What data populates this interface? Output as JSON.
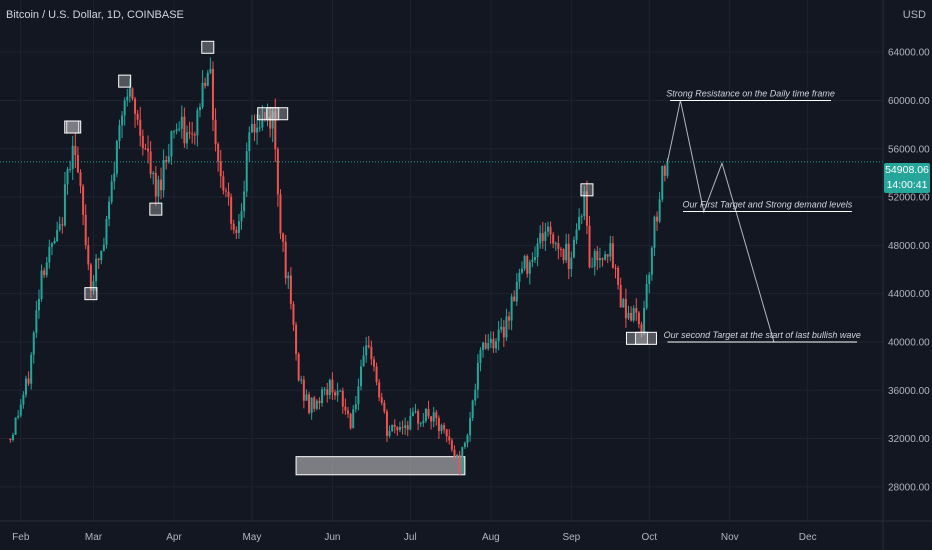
{
  "header": {
    "title": "Bitcoin / U.S. Dollar, 1D, COINBASE",
    "currency": "USD"
  },
  "price_tag": {
    "price": "54908.06",
    "countdown": "14:00:41"
  },
  "colors": {
    "up": "#26a69a",
    "down": "#ef5350",
    "background": "#131722",
    "grid": "#1f2330",
    "annotation": "#d1d4dc"
  },
  "annotations": {
    "resistance": "Strong Resistance on the Daily time frame",
    "first_target": "Our First Target and Strong demand levels",
    "second_target": "Our second Target at the start of last bullish wave"
  },
  "chart_data": {
    "type": "candlestick",
    "title": "Bitcoin / U.S. Dollar, 1D, COINBASE",
    "xlabel": "",
    "ylabel": "",
    "ylim": [
      25000,
      68000
    ],
    "y_ticks": [
      28000,
      32000,
      36000,
      40000,
      44000,
      48000,
      52000,
      56000,
      60000,
      64000
    ],
    "y_tick_labels": [
      "28000.00",
      "32000.00",
      "36000.00",
      "40000.00",
      "44000.00",
      "48000.00",
      "52000.00",
      "56000.00",
      "60000.00",
      "64000.00"
    ],
    "x_ticks": [
      "Feb",
      "Mar",
      "Apr",
      "May",
      "Jun",
      "Jul",
      "Aug",
      "Sep",
      "Oct",
      "Nov",
      "Dec"
    ],
    "grid": true,
    "last_price": 54908.06,
    "close_path": [
      {
        "date": "2021-01-28",
        "close": 32000
      },
      {
        "date": "2021-02-04",
        "close": 37000
      },
      {
        "date": "2021-02-09",
        "close": 46000
      },
      {
        "date": "2021-02-16",
        "close": 49000
      },
      {
        "date": "2021-02-21",
        "close": 57000
      },
      {
        "date": "2021-02-28",
        "close": 45000
      },
      {
        "date": "2021-03-05",
        "close": 48000
      },
      {
        "date": "2021-03-13",
        "close": 61000
      },
      {
        "date": "2021-03-20",
        "close": 57000
      },
      {
        "date": "2021-03-25",
        "close": 52000
      },
      {
        "date": "2021-04-01",
        "close": 58000
      },
      {
        "date": "2021-04-08",
        "close": 56500
      },
      {
        "date": "2021-04-14",
        "close": 63500
      },
      {
        "date": "2021-04-18",
        "close": 55000
      },
      {
        "date": "2021-04-25",
        "close": 49000
      },
      {
        "date": "2021-05-01",
        "close": 57800
      },
      {
        "date": "2021-05-09",
        "close": 58500
      },
      {
        "date": "2021-05-12",
        "close": 50000
      },
      {
        "date": "2021-05-19",
        "close": 37000
      },
      {
        "date": "2021-05-23",
        "close": 34500
      },
      {
        "date": "2021-06-01",
        "close": 36500
      },
      {
        "date": "2021-06-08",
        "close": 33500
      },
      {
        "date": "2021-06-15",
        "close": 40000
      },
      {
        "date": "2021-06-22",
        "close": 32500
      },
      {
        "date": "2021-07-01",
        "close": 33500
      },
      {
        "date": "2021-07-08",
        "close": 34000
      },
      {
        "date": "2021-07-15",
        "close": 32000
      },
      {
        "date": "2021-07-20",
        "close": 29800
      },
      {
        "date": "2021-07-25",
        "close": 35000
      },
      {
        "date": "2021-07-29",
        "close": 40000
      },
      {
        "date": "2021-08-05",
        "close": 40500
      },
      {
        "date": "2021-08-12",
        "close": 45500
      },
      {
        "date": "2021-08-22",
        "close": 49300
      },
      {
        "date": "2021-08-31",
        "close": 47000
      },
      {
        "date": "2021-09-06",
        "close": 52000
      },
      {
        "date": "2021-09-08",
        "close": 46500
      },
      {
        "date": "2021-09-15",
        "close": 48000
      },
      {
        "date": "2021-09-21",
        "close": 43000
      },
      {
        "date": "2021-09-28",
        "close": 41500
      },
      {
        "date": "2021-10-02",
        "close": 48000
      },
      {
        "date": "2021-10-06",
        "close": 54000
      },
      {
        "date": "2021-10-08",
        "close": 54908.06
      }
    ],
    "pivot_markers": [
      {
        "date": "2021-02-21",
        "price": 57800
      },
      {
        "date": "2021-02-28",
        "price": 44000
      },
      {
        "date": "2021-03-13",
        "price": 61600
      },
      {
        "date": "2021-03-25",
        "price": 51000
      },
      {
        "date": "2021-04-14",
        "price": 64400
      },
      {
        "date": "2021-05-09",
        "price": 58900
      },
      {
        "date": "2021-09-07",
        "price": 52600
      },
      {
        "date": "2021-09-28",
        "price": 40300
      }
    ],
    "zones": [
      {
        "start": "2021-05-18",
        "end": "2021-07-22",
        "low": 29000,
        "high": 30500
      }
    ],
    "projection": [
      {
        "date": "2021-10-08",
        "price": 54908
      },
      {
        "date": "2021-10-13",
        "price": 60000
      },
      {
        "date": "2021-10-22",
        "price": 50800
      },
      {
        "date": "2021-10-29",
        "price": 54800
      },
      {
        "date": "2021-11-18",
        "price": 40000
      }
    ],
    "levels": [
      {
        "label": "Strong Resistance on the Daily time frame",
        "price": 60000,
        "start": "2021-10-09",
        "end": "2021-12-10"
      },
      {
        "label": "Our First Target and Strong demand levels",
        "price": 50800,
        "start": "2021-10-14",
        "end": "2021-12-18"
      },
      {
        "label": "Our second Target at the start of last bullish wave",
        "price": 40000,
        "start": "2021-10-08",
        "end": "2021-12-20"
      }
    ]
  }
}
